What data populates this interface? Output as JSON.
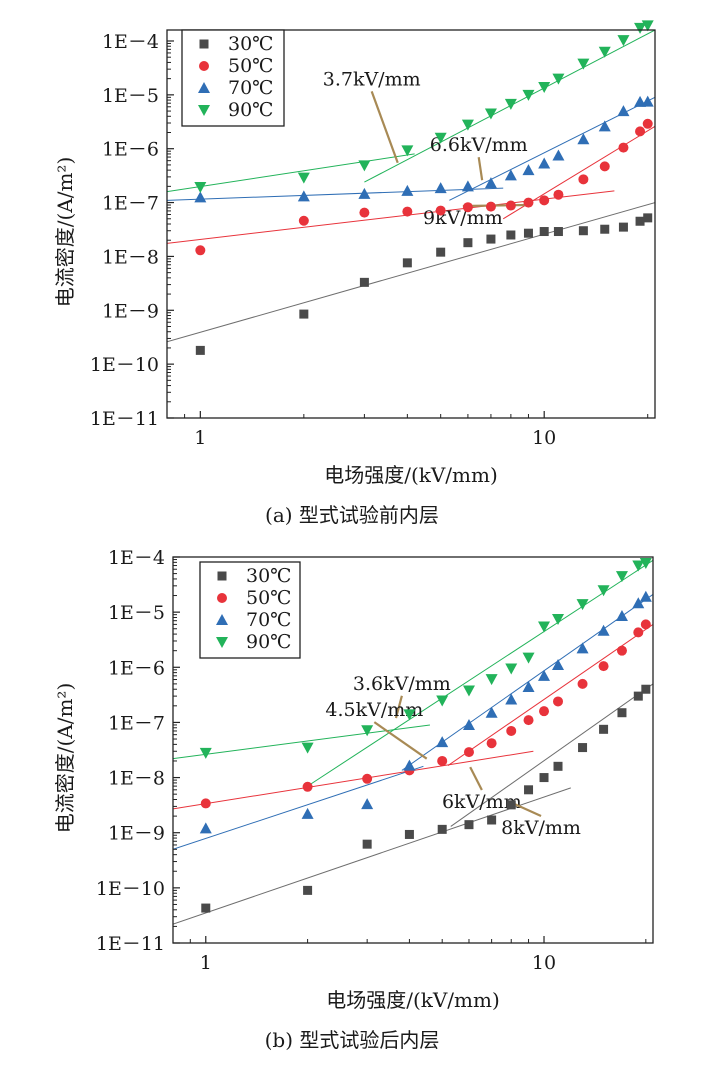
{
  "chart_data": [
    {
      "type": "scatter",
      "caption": "(a) 型式试验前内层",
      "xlabel": "电场强度/(kV/mm)",
      "ylabel": "电流密度/(A/m²)",
      "xscale": "log",
      "yscale": "log",
      "xlim": [
        0.8,
        21
      ],
      "ylim": [
        1e-11,
        0.00016
      ],
      "x_ticks": [
        1,
        10
      ],
      "x_tick_labels": [
        "1",
        "10"
      ],
      "y_ticks": [
        1e-11,
        1e-10,
        1e-09,
        1e-08,
        1e-07,
        1e-06,
        1e-05,
        0.0001
      ],
      "y_tick_labels": [
        "1E－11",
        "1E－10",
        "1E－9",
        "1E－8",
        "1E－7",
        "1E－6",
        "1E－5",
        "1E－4"
      ],
      "legend_position": "top-left",
      "series": [
        {
          "name": "30℃",
          "marker": "square",
          "color": "#4a4a4a",
          "x": [
            1,
            2,
            3,
            4,
            5,
            6,
            7,
            8,
            9,
            10,
            11,
            13,
            15,
            17,
            19,
            20
          ],
          "y": [
            1.8e-10,
            8.5e-10,
            3.3e-09,
            7.6e-09,
            1.2e-08,
            1.8e-08,
            2.1e-08,
            2.5e-08,
            2.7e-08,
            2.9e-08,
            2.9e-08,
            3e-08,
            3.2e-08,
            3.5e-08,
            4.5e-08,
            5.2e-08
          ]
        },
        {
          "name": "50℃",
          "marker": "circle",
          "color": "#e8333b",
          "x": [
            1,
            2,
            3,
            4,
            5,
            6,
            7,
            8,
            9,
            10,
            11,
            13,
            15,
            17,
            19,
            20
          ],
          "y": [
            1.3e-08,
            4.6e-08,
            6.5e-08,
            6.8e-08,
            7.1e-08,
            8.2e-08,
            8.4e-08,
            8.8e-08,
            1e-07,
            1.1e-07,
            1.4e-07,
            2.7e-07,
            4.7e-07,
            1.05e-06,
            2.1e-06,
            2.9e-06
          ]
        },
        {
          "name": "70℃",
          "marker": "triangle-up",
          "color": "#2f6eb5",
          "x": [
            1,
            2,
            3,
            4,
            5,
            6,
            7,
            8,
            9,
            10,
            11,
            13,
            15,
            17,
            19,
            20
          ],
          "y": [
            1.25e-07,
            1.3e-07,
            1.45e-07,
            1.65e-07,
            1.85e-07,
            2e-07,
            2.3e-07,
            3.2e-07,
            4e-07,
            5.3e-07,
            7.5e-07,
            1.5e-06,
            2.6e-06,
            5e-06,
            7.4e-06,
            7.5e-06
          ]
        },
        {
          "name": "90℃",
          "marker": "triangle-down",
          "color": "#22b35a",
          "x": [
            1,
            2,
            3,
            4,
            5,
            6,
            7,
            8,
            9,
            10,
            11,
            13,
            15,
            17,
            19,
            20
          ],
          "y": [
            1.95e-07,
            2.9e-07,
            4.9e-07,
            9.3e-07,
            1.6e-06,
            2.8e-06,
            4.5e-06,
            6.8e-06,
            1e-05,
            1.4e-05,
            2e-05,
            3.8e-05,
            6.3e-05,
            0.000104,
            0.000175,
            0.000195
          ]
        }
      ],
      "fit_lines": [
        {
          "color": "#6e6e6e",
          "x": [
            0.8,
            21
          ],
          "y": [
            2.6e-10,
            1e-07
          ]
        },
        {
          "color": "#e8333b",
          "x": [
            0.8,
            16
          ],
          "y": [
            1.75e-08,
            1.65e-07
          ]
        },
        {
          "color": "#e8333b",
          "x": [
            7.6,
            21
          ],
          "y": [
            5e-08,
            2.6e-06
          ]
        },
        {
          "color": "#2f6eb5",
          "x": [
            0.8,
            7.6
          ],
          "y": [
            1.1e-07,
            1.85e-07
          ]
        },
        {
          "color": "#2f6eb5",
          "x": [
            5.3,
            21
          ],
          "y": [
            1.1e-07,
            9e-06
          ]
        },
        {
          "color": "#22b35a",
          "x": [
            0.8,
            4.2
          ],
          "y": [
            1.6e-07,
            8e-07
          ]
        },
        {
          "color": "#22b35a",
          "x": [
            3,
            21
          ],
          "y": [
            2.4e-07,
            0.00016
          ]
        }
      ],
      "annotations": [
        {
          "text": "3.7kV/mm",
          "label_at": [
            3.15,
            1.5e-05
          ],
          "arrow_to": [
            3.75,
            5.5e-07
          ]
        },
        {
          "text": "6.6kV/mm",
          "label_at": [
            6.45,
            9e-07
          ],
          "arrow_to": [
            6.6,
            2.6e-07
          ]
        },
        {
          "text": "9kV/mm",
          "label_at": [
            5.8,
            4e-08
          ],
          "arrow_to": [
            8.9,
            9e-08
          ]
        }
      ]
    },
    {
      "type": "scatter",
      "caption": "(b) 型式试验后内层",
      "xlabel": "电场强度/(kV/mm)",
      "ylabel": "电流密度/(A/m²)",
      "xscale": "log",
      "yscale": "log",
      "xlim": [
        0.8,
        21
      ],
      "ylim": [
        1e-11,
        0.0001
      ],
      "x_ticks": [
        1,
        10
      ],
      "x_tick_labels": [
        "1",
        "10"
      ],
      "y_ticks": [
        1e-11,
        1e-10,
        1e-09,
        1e-08,
        1e-07,
        1e-06,
        1e-05,
        0.0001
      ],
      "y_tick_labels": [
        "1E－11",
        "1E－10",
        "1E－9",
        "1E－8",
        "1E－7",
        "1E－6",
        "1E－5",
        "1E－4"
      ],
      "legend_position": "top-left",
      "series": [
        {
          "name": "30℃",
          "marker": "square",
          "color": "#4a4a4a",
          "x": [
            1,
            2,
            3,
            4,
            5,
            6,
            7,
            8,
            9,
            10,
            11,
            13,
            15,
            17,
            19,
            20
          ],
          "y": [
            4.3e-11,
            9e-11,
            6.2e-10,
            9.3e-10,
            1.15e-09,
            1.4e-09,
            1.7e-09,
            3.2e-09,
            6e-09,
            1e-08,
            1.6e-08,
            3.5e-08,
            7.5e-08,
            1.5e-07,
            3e-07,
            4e-07
          ]
        },
        {
          "name": "50℃",
          "marker": "circle",
          "color": "#e8333b",
          "x": [
            1,
            2,
            3,
            4,
            5,
            6,
            7,
            8,
            9,
            10,
            11,
            13,
            15,
            17,
            19,
            20
          ],
          "y": [
            3.4e-09,
            6.8e-09,
            9.5e-09,
            1.35e-08,
            2e-08,
            2.9e-08,
            4.2e-08,
            7e-08,
            1.1e-07,
            1.6e-07,
            2.4e-07,
            5e-07,
            1.05e-06,
            2e-06,
            4.3e-06,
            6e-06
          ]
        },
        {
          "name": "70℃",
          "marker": "triangle-up",
          "color": "#2f6eb5",
          "x": [
            1,
            2,
            3,
            4,
            5,
            6,
            7,
            8,
            9,
            10,
            11,
            13,
            15,
            17,
            19,
            20
          ],
          "y": [
            1.2e-09,
            2.2e-09,
            3.3e-09,
            1.65e-08,
            4.4e-08,
            9e-08,
            1.5e-07,
            2.6e-07,
            4.4e-07,
            7e-07,
            1.1e-06,
            2.2e-06,
            4.6e-06,
            8.5e-06,
            1.45e-05,
            1.9e-05
          ]
        },
        {
          "name": "90℃",
          "marker": "triangle-down",
          "color": "#22b35a",
          "x": [
            1,
            2,
            3,
            4,
            5,
            6,
            7,
            8,
            9,
            10,
            11,
            13,
            15,
            17,
            19,
            20
          ],
          "y": [
            2.8e-08,
            3.5e-08,
            7.2e-08,
            1.4e-07,
            2.5e-07,
            3.8e-07,
            6.1e-07,
            9.5e-07,
            1.5e-06,
            5.5e-06,
            7.5e-06,
            1.4e-05,
            2.5e-05,
            4.5e-05,
            7e-05,
            7.8e-05
          ]
        }
      ],
      "fit_lines": [
        {
          "color": "#6e6e6e",
          "x": [
            0.8,
            12
          ],
          "y": [
            2.2e-11,
            6.5e-09
          ]
        },
        {
          "color": "#6e6e6e",
          "x": [
            5.3,
            21
          ],
          "y": [
            1.3e-09,
            5e-07
          ]
        },
        {
          "color": "#e8333b",
          "x": [
            0.8,
            9.3
          ],
          "y": [
            2.7e-09,
            3e-08
          ]
        },
        {
          "color": "#e8333b",
          "x": [
            5.2,
            21
          ],
          "y": [
            1.65e-08,
            6e-06
          ]
        },
        {
          "color": "#2f6eb5",
          "x": [
            0.8,
            4.4
          ],
          "y": [
            5e-10,
            1.6e-08
          ]
        },
        {
          "color": "#2f6eb5",
          "x": [
            3.8,
            21
          ],
          "y": [
            1.35e-08,
            2.1e-05
          ]
        },
        {
          "color": "#22b35a",
          "x": [
            0.8,
            4.6
          ],
          "y": [
            2.2e-08,
            9e-08
          ]
        },
        {
          "color": "#22b35a",
          "x": [
            2,
            21
          ],
          "y": [
            7e-09,
            8.7e-05
          ]
        }
      ],
      "annotations": [
        {
          "text": "3.6kV/mm",
          "label_at": [
            3.8,
            3.9e-07
          ],
          "arrow_to": [
            3.65,
            1.2e-07
          ]
        },
        {
          "text": "4.5kV/mm",
          "label_at": [
            3.15,
            1.3e-07
          ],
          "arrow_to": [
            4.5,
            2.2e-08
          ]
        },
        {
          "text": "6kV/mm",
          "label_at": [
            6.55,
            2.8e-09
          ],
          "arrow_to": [
            6.05,
            1.55e-08
          ]
        },
        {
          "text": "8kV/mm",
          "label_at": [
            9.8,
            9.5e-10
          ],
          "arrow_to": [
            8.1,
            3.4e-09
          ]
        }
      ]
    }
  ]
}
